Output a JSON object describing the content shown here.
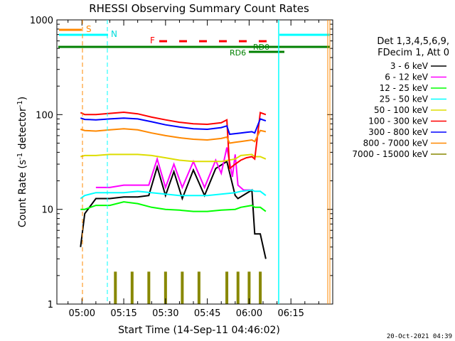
{
  "chart_data": {
    "type": "line",
    "title": "RHESSI Observing Summary Count Rates",
    "xlabel": "Start Time (14-Sep-11 04:46:02)",
    "ylabel_main": "Count Rate (s",
    "ylabel_sup1": "-1",
    "ylabel_mid": " detector",
    "ylabel_sup2": "-1",
    "ylabel_end": ")",
    "y_scale": "log",
    "ylim": [
      1,
      1000
    ],
    "xlim_minutes": [
      -9,
      90
    ],
    "x_ticks": [
      "05:00",
      "05:15",
      "05:30",
      "05:45",
      "06:00",
      "06:15"
    ],
    "x_tick_minutes": [
      0,
      15,
      30,
      45,
      60,
      75
    ],
    "y_ticks": [
      "1",
      "10",
      "100",
      "1000"
    ],
    "y_tick_values": [
      1,
      10,
      100,
      1000
    ],
    "legend_header": [
      "Det 1,3,4,5,6,9,",
      "FDecim 1, Att 0"
    ],
    "legend_position": "right",
    "timestamp": "20-Oct-2021 04:39",
    "flag_labels": {
      "S": "S",
      "N": "N",
      "F": "F",
      "RD0": "RD0",
      "RD6": "RD6"
    },
    "series": [
      {
        "name": "3 - 6 keV",
        "color": "#000000",
        "x": [
          -0.5,
          1,
          5,
          10,
          15,
          20,
          24,
          27,
          30,
          33,
          36,
          40,
          44,
          48,
          52,
          55,
          56,
          61,
          62,
          64,
          66
        ],
        "y": [
          4,
          9,
          13,
          13,
          13.5,
          13.5,
          14,
          28,
          14,
          25,
          13,
          26,
          14,
          27,
          32,
          14,
          13,
          16,
          5.5,
          5.5,
          3
        ]
      },
      {
        "name": "6 - 12 keV",
        "color": "#ff00ff",
        "x": [
          5,
          10,
          15,
          20,
          24,
          27,
          30,
          33,
          36,
          40,
          44,
          48,
          50,
          52,
          54,
          55,
          56,
          58,
          61
        ],
        "y": [
          17,
          17,
          18,
          18,
          18,
          34,
          17,
          30,
          17,
          32,
          17,
          33,
          24,
          45,
          22,
          38,
          18,
          16,
          16
        ]
      },
      {
        "name": "12 - 25 keV",
        "color": "#00ff00",
        "x": [
          -0.5,
          1,
          5,
          10,
          15,
          20,
          25,
          30,
          35,
          40,
          45,
          50,
          55,
          57,
          61,
          62,
          64,
          66
        ],
        "y": [
          10,
          10,
          11,
          11,
          12,
          11.5,
          10.5,
          10,
          9.8,
          9.5,
          9.5,
          9.8,
          10,
          10.5,
          11,
          10.5,
          10.5,
          9.5
        ]
      },
      {
        "name": "25 - 50 keV",
        "color": "#00ffff",
        "x": [
          -0.5,
          1,
          5,
          10,
          15,
          20,
          25,
          30,
          35,
          40,
          45,
          50,
          55,
          57,
          61,
          62,
          64,
          66
        ],
        "y": [
          13,
          14,
          15,
          15,
          15,
          15.5,
          15,
          14.5,
          14,
          14,
          14,
          14.5,
          15,
          15.5,
          16,
          15.5,
          15.5,
          14
        ]
      },
      {
        "name": "50 - 100 keV",
        "color": "#dddd00",
        "x": [
          -0.5,
          1,
          5,
          10,
          15,
          20,
          25,
          30,
          35,
          40,
          45,
          50,
          55,
          57,
          61,
          62,
          64,
          66
        ],
        "y": [
          36,
          37,
          37,
          38,
          38,
          38,
          37,
          35,
          33,
          32,
          32,
          32,
          34,
          37,
          38,
          36,
          36,
          34
        ]
      },
      {
        "name": "100 - 300 keV",
        "color": "#ff0000",
        "x": [
          -0.5,
          1,
          5,
          10,
          15,
          20,
          25,
          30,
          35,
          40,
          45,
          50,
          52,
          53,
          55,
          57,
          59,
          61,
          62,
          64,
          66
        ],
        "y": [
          105,
          100,
          100,
          103,
          106,
          102,
          94,
          88,
          83,
          80,
          79,
          82,
          88,
          27,
          30,
          33,
          35,
          36,
          34,
          105,
          100
        ]
      },
      {
        "name": "300 - 800 keV",
        "color": "#0000ff",
        "x": [
          -0.5,
          1,
          5,
          10,
          15,
          20,
          25,
          30,
          35,
          40,
          45,
          50,
          52,
          53,
          55,
          57,
          59,
          61,
          62,
          64,
          66
        ],
        "y": [
          92,
          89,
          88,
          90,
          92,
          90,
          84,
          78,
          74,
          71,
          70,
          73,
          76,
          62,
          63,
          64,
          65,
          66,
          64,
          90,
          86
        ]
      },
      {
        "name": "800 - 7000 keV",
        "color": "#ff8800",
        "x": [
          -0.5,
          1,
          5,
          10,
          15,
          20,
          25,
          30,
          35,
          40,
          45,
          50,
          52,
          53,
          55,
          57,
          59,
          61,
          62,
          64,
          66
        ],
        "y": [
          70,
          68,
          67,
          69,
          71,
          69,
          64,
          60,
          57,
          55,
          54,
          56,
          58,
          50,
          51,
          52,
          53,
          54,
          52,
          68,
          66
        ]
      },
      {
        "name": "7000 - 15000 keV",
        "color": "#888800",
        "x": [
          12,
          18,
          24,
          30,
          36,
          42,
          52,
          56,
          60,
          64
        ],
        "y": [
          2.2,
          2.2,
          2.2,
          2.2,
          2.2,
          2.2,
          2.2,
          2.2,
          2.2,
          2.2
        ]
      }
    ]
  }
}
